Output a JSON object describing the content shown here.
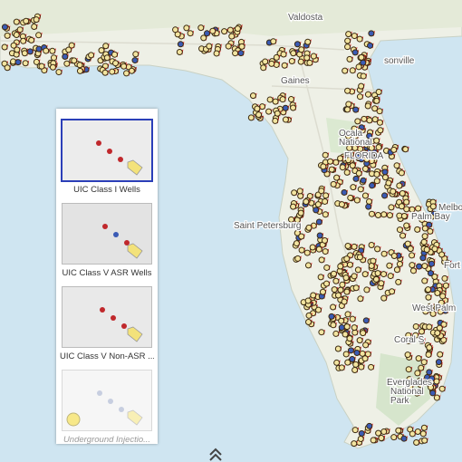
{
  "map": {
    "labels": [
      {
        "text": "Valdosta"
      },
      {
        "text": "sonville"
      },
      {
        "text": "Gaines"
      },
      {
        "text": "Ocala"
      },
      {
        "text": "National"
      },
      {
        "text": "FLORIDA"
      },
      {
        "text": "Saint Petersburg"
      },
      {
        "text": "Melbourne"
      },
      {
        "text": "Palm Bay"
      },
      {
        "text": "Fort P"
      },
      {
        "text": "West Palm"
      },
      {
        "text": "Coral S"
      },
      {
        "text": "Everglades"
      },
      {
        "text": "National"
      },
      {
        "text": "Park"
      }
    ]
  },
  "gallery": {
    "selected_index": 0,
    "items": [
      {
        "title": "UIC Class I Wells"
      },
      {
        "title": "UIC Class V ASR Wells"
      },
      {
        "title": "UIC Class V Non-ASR ..."
      },
      {
        "title": "Underground Injectio..."
      }
    ]
  }
}
